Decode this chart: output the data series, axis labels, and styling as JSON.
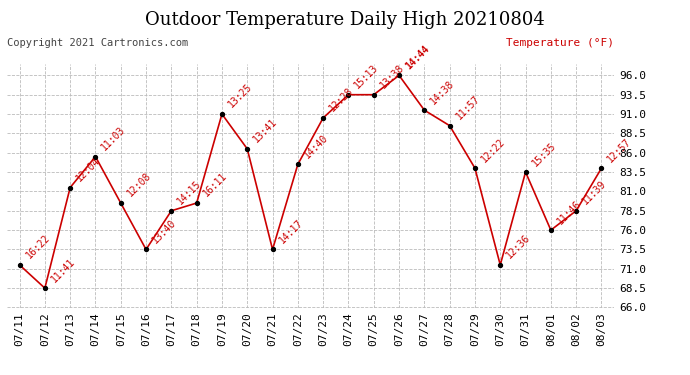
{
  "title": "Outdoor Temperature Daily High 20210804",
  "copyright": "Copyright 2021 Cartronics.com",
  "ylabel": "Temperature (°F)",
  "dates": [
    "07/11",
    "07/12",
    "07/13",
    "07/14",
    "07/15",
    "07/16",
    "07/17",
    "07/18",
    "07/19",
    "07/20",
    "07/21",
    "07/22",
    "07/23",
    "07/24",
    "07/25",
    "07/26",
    "07/27",
    "07/28",
    "07/29",
    "07/30",
    "07/31",
    "08/01",
    "08/02",
    "08/03"
  ],
  "values": [
    71.5,
    68.5,
    81.5,
    85.5,
    79.5,
    73.5,
    78.5,
    79.5,
    91.0,
    86.5,
    73.5,
    84.5,
    90.5,
    93.5,
    93.5,
    96.0,
    91.5,
    89.5,
    84.0,
    71.5,
    83.5,
    76.0,
    78.5,
    84.0
  ],
  "labels": [
    "16:22",
    "11:41",
    "12:04",
    "11:03",
    "12:08",
    "13:40",
    "14:15",
    "16:11",
    "13:25",
    "13:41",
    "14:17",
    "14:40",
    "12:28",
    "15:13",
    "13:38",
    "14:44",
    "14:38",
    "11:57",
    "12:22",
    "12:36",
    "15:35",
    "11:46",
    "11:39",
    "12:57"
  ],
  "ylim": [
    66.0,
    97.5
  ],
  "yticks": [
    66.0,
    68.5,
    71.0,
    73.5,
    76.0,
    78.5,
    81.0,
    83.5,
    86.0,
    88.5,
    91.0,
    93.5,
    96.0
  ],
  "line_color": "#cc0000",
  "marker_color": "#000000",
  "label_color": "#cc0000",
  "highlight_label": "14:44",
  "highlight_color": "#cc0000",
  "background_color": "#ffffff",
  "grid_color": "#bbbbbb",
  "title_fontsize": 13,
  "label_fontsize": 7,
  "axis_fontsize": 8,
  "copyright_fontsize": 7.5
}
